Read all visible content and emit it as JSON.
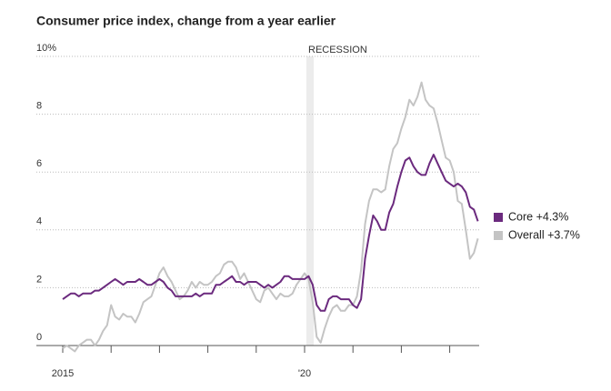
{
  "chart_data": {
    "type": "line",
    "title": "Consumer price index, change from a year earlier",
    "annotation": "RECESSION",
    "categories": [
      "2015",
      null,
      null,
      null,
      null,
      null,
      null,
      null,
      null,
      null,
      null,
      null,
      null,
      null,
      null,
      null,
      null,
      null,
      null,
      null,
      null,
      null,
      null,
      null,
      null,
      null,
      null,
      null,
      null,
      null,
      null,
      null,
      null,
      null,
      null,
      null,
      null,
      null,
      null,
      null,
      null,
      null,
      null,
      null,
      null,
      null,
      null,
      null,
      null,
      null,
      null,
      null,
      null,
      null,
      null,
      null,
      null,
      null,
      null,
      null,
      "'20",
      null,
      null,
      null,
      null,
      null,
      null,
      null,
      null,
      null,
      null,
      null,
      null,
      null,
      null,
      null,
      null,
      null,
      null,
      null,
      null,
      null,
      null,
      null,
      null,
      null,
      null,
      null,
      null,
      null,
      null,
      null,
      null,
      null,
      null,
      null,
      null,
      null,
      null,
      null,
      null,
      null,
      null,
      null
    ],
    "series": [
      {
        "name": "Overall +3.7%",
        "color": "#c4c4c4",
        "values": [
          -0.1,
          0.0,
          -0.1,
          -0.2,
          0.0,
          0.1,
          0.2,
          0.2,
          0.0,
          0.2,
          0.5,
          0.7,
          1.4,
          1.0,
          0.9,
          1.1,
          1.0,
          1.0,
          0.8,
          1.1,
          1.5,
          1.6,
          1.7,
          2.1,
          2.5,
          2.7,
          2.4,
          2.2,
          1.9,
          1.6,
          1.7,
          1.9,
          2.2,
          2.0,
          2.2,
          2.1,
          2.1,
          2.2,
          2.4,
          2.5,
          2.8,
          2.9,
          2.9,
          2.7,
          2.3,
          2.5,
          2.2,
          1.9,
          1.6,
          1.5,
          1.9,
          2.0,
          1.8,
          1.6,
          1.8,
          1.7,
          1.7,
          1.8,
          2.1,
          2.3,
          2.5,
          2.3,
          1.5,
          0.3,
          0.1,
          0.6,
          1.0,
          1.3,
          1.4,
          1.2,
          1.2,
          1.4,
          1.4,
          1.7,
          2.6,
          4.2,
          5.0,
          5.4,
          5.4,
          5.3,
          5.4,
          6.2,
          6.8,
          7.0,
          7.5,
          7.9,
          8.5,
          8.3,
          8.6,
          9.1,
          8.5,
          8.3,
          8.2,
          7.7,
          7.1,
          6.5,
          6.4,
          6.0,
          5.0,
          4.9,
          4.0,
          3.0,
          3.2,
          3.7
        ]
      },
      {
        "name": "Core +4.3%",
        "color": "#6b2a7e",
        "values": [
          1.6,
          1.7,
          1.8,
          1.8,
          1.7,
          1.8,
          1.8,
          1.8,
          1.9,
          1.9,
          2.0,
          2.1,
          2.2,
          2.3,
          2.2,
          2.1,
          2.2,
          2.2,
          2.2,
          2.3,
          2.2,
          2.1,
          2.1,
          2.2,
          2.3,
          2.2,
          2.0,
          1.9,
          1.7,
          1.7,
          1.7,
          1.7,
          1.7,
          1.8,
          1.7,
          1.8,
          1.8,
          1.8,
          2.1,
          2.1,
          2.2,
          2.3,
          2.4,
          2.2,
          2.2,
          2.1,
          2.2,
          2.2,
          2.2,
          2.1,
          2.0,
          2.1,
          2.0,
          2.1,
          2.2,
          2.4,
          2.4,
          2.3,
          2.3,
          2.3,
          2.3,
          2.4,
          2.1,
          1.4,
          1.2,
          1.2,
          1.6,
          1.7,
          1.7,
          1.6,
          1.6,
          1.6,
          1.4,
          1.3,
          1.6,
          3.0,
          3.8,
          4.5,
          4.3,
          4.0,
          4.0,
          4.6,
          4.9,
          5.5,
          6.0,
          6.4,
          6.5,
          6.2,
          6.0,
          5.9,
          5.9,
          6.3,
          6.6,
          6.3,
          6.0,
          5.7,
          5.6,
          5.5,
          5.6,
          5.5,
          5.3,
          4.8,
          4.7,
          4.3
        ]
      }
    ],
    "ylim": [
      0,
      10
    ],
    "yticks": [
      0,
      2,
      4,
      6,
      8,
      {
        "value": 10,
        "label": "10%"
      }
    ],
    "grid": true
  }
}
